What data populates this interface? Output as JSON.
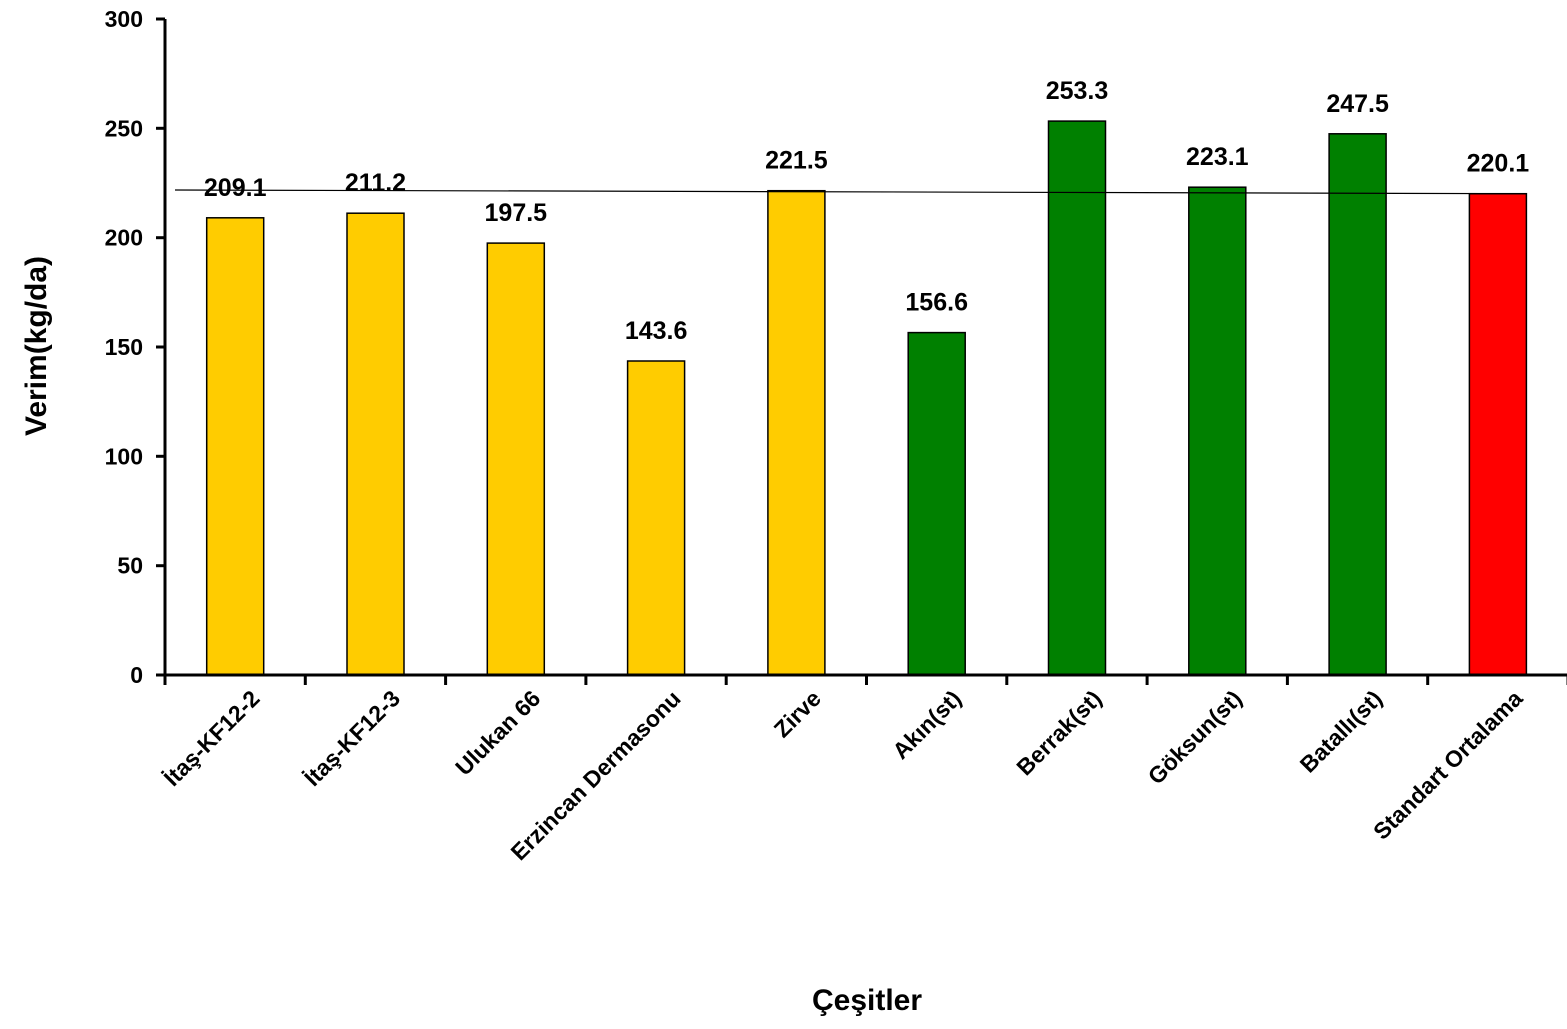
{
  "chart_data": {
    "type": "bar",
    "xlabel": "Çeşitler",
    "ylabel": "Verim(kg/da)",
    "ylim": [
      0,
      300
    ],
    "yticks": [
      0,
      50,
      100,
      150,
      200,
      250,
      300
    ],
    "grid": false,
    "legend": "none",
    "categories": [
      "İtaş-KF12-2",
      "İtaş-KF12-3",
      "Ulukan 66",
      "Erzincan Dermasonu",
      "Zirve",
      "Akın(st)",
      "Berrak(st)",
      "Göksun(st)",
      "Batallı(st)",
      "Standart Ortalama"
    ],
    "values": [
      209.1,
      211.2,
      197.5,
      143.6,
      221.5,
      156.6,
      253.3,
      223.1,
      247.5,
      220.1
    ],
    "value_labels": [
      "209.1",
      "211.2",
      "197.5",
      "143.6",
      "221.5",
      "156.6",
      "253.3",
      "223.1",
      "247.5",
      "220.1"
    ],
    "bar_colors": [
      "#FFCC00",
      "#FFCC00",
      "#FFCC00",
      "#FFCC00",
      "#FFCC00",
      "#008000",
      "#008000",
      "#008000",
      "#008000",
      "#FF0000"
    ],
    "reference_line": {
      "value": 220.1,
      "from_value": 221.8,
      "color": "#000000"
    }
  }
}
